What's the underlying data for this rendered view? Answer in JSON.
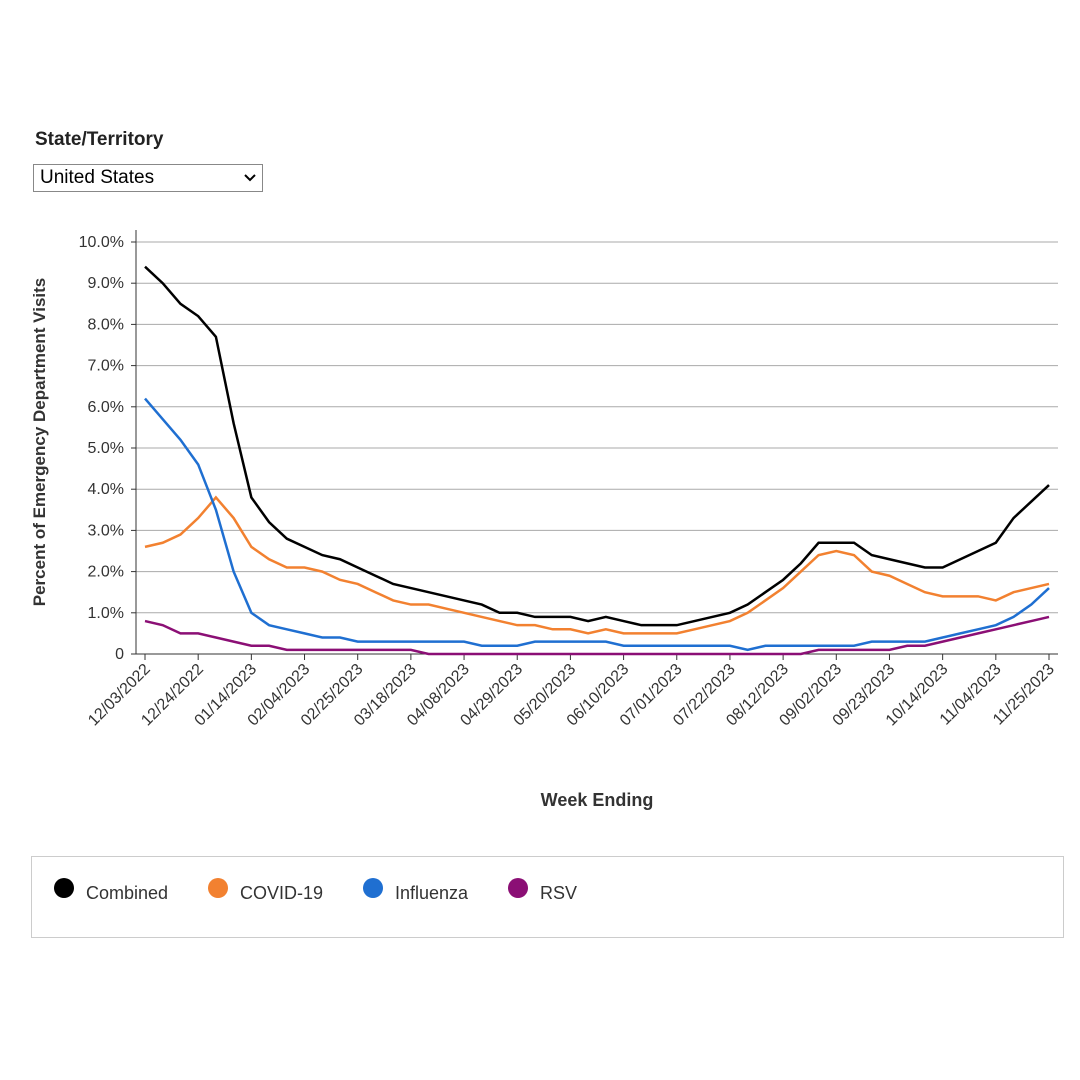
{
  "controls": {
    "label": "State/Territory",
    "selected": "United States"
  },
  "chart_data": {
    "type": "line",
    "ylabel": "Percent of Emergency Department Visits",
    "xlabel": "Week Ending",
    "categories": [
      "12/03/2022",
      null,
      null,
      "12/24/2022",
      null,
      null,
      "01/14/2023",
      null,
      null,
      "02/04/2023",
      null,
      null,
      "02/25/2023",
      null,
      null,
      "03/18/2023",
      null,
      null,
      "04/08/2023",
      null,
      null,
      "04/29/2023",
      null,
      null,
      "05/20/2023",
      null,
      null,
      "06/10/2023",
      null,
      null,
      "07/01/2023",
      null,
      null,
      "07/22/2023",
      null,
      null,
      "08/12/2023",
      null,
      null,
      "09/02/2023",
      null,
      null,
      "09/23/2023",
      null,
      null,
      "10/14/2023",
      null,
      null,
      "11/04/2023",
      null,
      null,
      "11/25/2023"
    ],
    "ylim": [
      0,
      10
    ],
    "yticks": [
      {
        "value": 0,
        "label": "0"
      },
      {
        "value": 1,
        "label": "1.0%"
      },
      {
        "value": 2,
        "label": "2.0%"
      },
      {
        "value": 3,
        "label": "3.0%"
      },
      {
        "value": 4,
        "label": "4.0%"
      },
      {
        "value": 5,
        "label": "5.0%"
      },
      {
        "value": 6,
        "label": "6.0%"
      },
      {
        "value": 7,
        "label": "7.0%"
      },
      {
        "value": 8,
        "label": "8.0%"
      },
      {
        "value": 9,
        "label": "9.0%"
      },
      {
        "value": 10,
        "label": "10.0%"
      }
    ],
    "grid": true,
    "series": [
      {
        "name": "Combined",
        "color": "#000000",
        "values": [
          9.4,
          9.0,
          8.5,
          8.2,
          7.7,
          5.6,
          3.8,
          3.2,
          2.8,
          2.6,
          2.4,
          2.3,
          2.1,
          1.9,
          1.7,
          1.6,
          1.5,
          1.4,
          1.3,
          1.2,
          1.0,
          1.0,
          0.9,
          0.9,
          0.9,
          0.8,
          0.9,
          0.8,
          0.7,
          0.7,
          0.7,
          0.8,
          0.9,
          1.0,
          1.2,
          1.5,
          1.8,
          2.2,
          2.7,
          2.7,
          2.7,
          2.4,
          2.3,
          2.2,
          2.1,
          2.1,
          2.3,
          2.5,
          2.7,
          3.3,
          3.7,
          4.1
        ]
      },
      {
        "name": "COVID-19",
        "color": "#f28130",
        "values": [
          2.6,
          2.7,
          2.9,
          3.3,
          3.8,
          3.3,
          2.6,
          2.3,
          2.1,
          2.1,
          2.0,
          1.8,
          1.7,
          1.5,
          1.3,
          1.2,
          1.2,
          1.1,
          1.0,
          0.9,
          0.8,
          0.7,
          0.7,
          0.6,
          0.6,
          0.5,
          0.6,
          0.5,
          0.5,
          0.5,
          0.5,
          0.6,
          0.7,
          0.8,
          1.0,
          1.3,
          1.6,
          2.0,
          2.4,
          2.5,
          2.4,
          2.0,
          1.9,
          1.7,
          1.5,
          1.4,
          1.4,
          1.4,
          1.3,
          1.5,
          1.6,
          1.7
        ]
      },
      {
        "name": "Influenza",
        "color": "#1f6fd1",
        "values": [
          6.2,
          5.7,
          5.2,
          4.6,
          3.5,
          2.0,
          1.0,
          0.7,
          0.6,
          0.5,
          0.4,
          0.4,
          0.3,
          0.3,
          0.3,
          0.3,
          0.3,
          0.3,
          0.3,
          0.2,
          0.2,
          0.2,
          0.3,
          0.3,
          0.3,
          0.3,
          0.3,
          0.2,
          0.2,
          0.2,
          0.2,
          0.2,
          0.2,
          0.2,
          0.1,
          0.2,
          0.2,
          0.2,
          0.2,
          0.2,
          0.2,
          0.3,
          0.3,
          0.3,
          0.3,
          0.4,
          0.5,
          0.6,
          0.7,
          0.9,
          1.2,
          1.6
        ]
      },
      {
        "name": "RSV",
        "color": "#8b0f75",
        "values": [
          0.8,
          0.7,
          0.5,
          0.5,
          0.4,
          0.3,
          0.2,
          0.2,
          0.1,
          0.1,
          0.1,
          0.1,
          0.1,
          0.1,
          0.1,
          0.1,
          0,
          0,
          0,
          0,
          0,
          0,
          0,
          0,
          0,
          0,
          0,
          0,
          0,
          0,
          0,
          0,
          0,
          0,
          0,
          0,
          0,
          0,
          0.1,
          0.1,
          0.1,
          0.1,
          0.1,
          0.2,
          0.2,
          0.3,
          0.4,
          0.5,
          0.6,
          0.7,
          0.8,
          0.9
        ]
      }
    ]
  }
}
